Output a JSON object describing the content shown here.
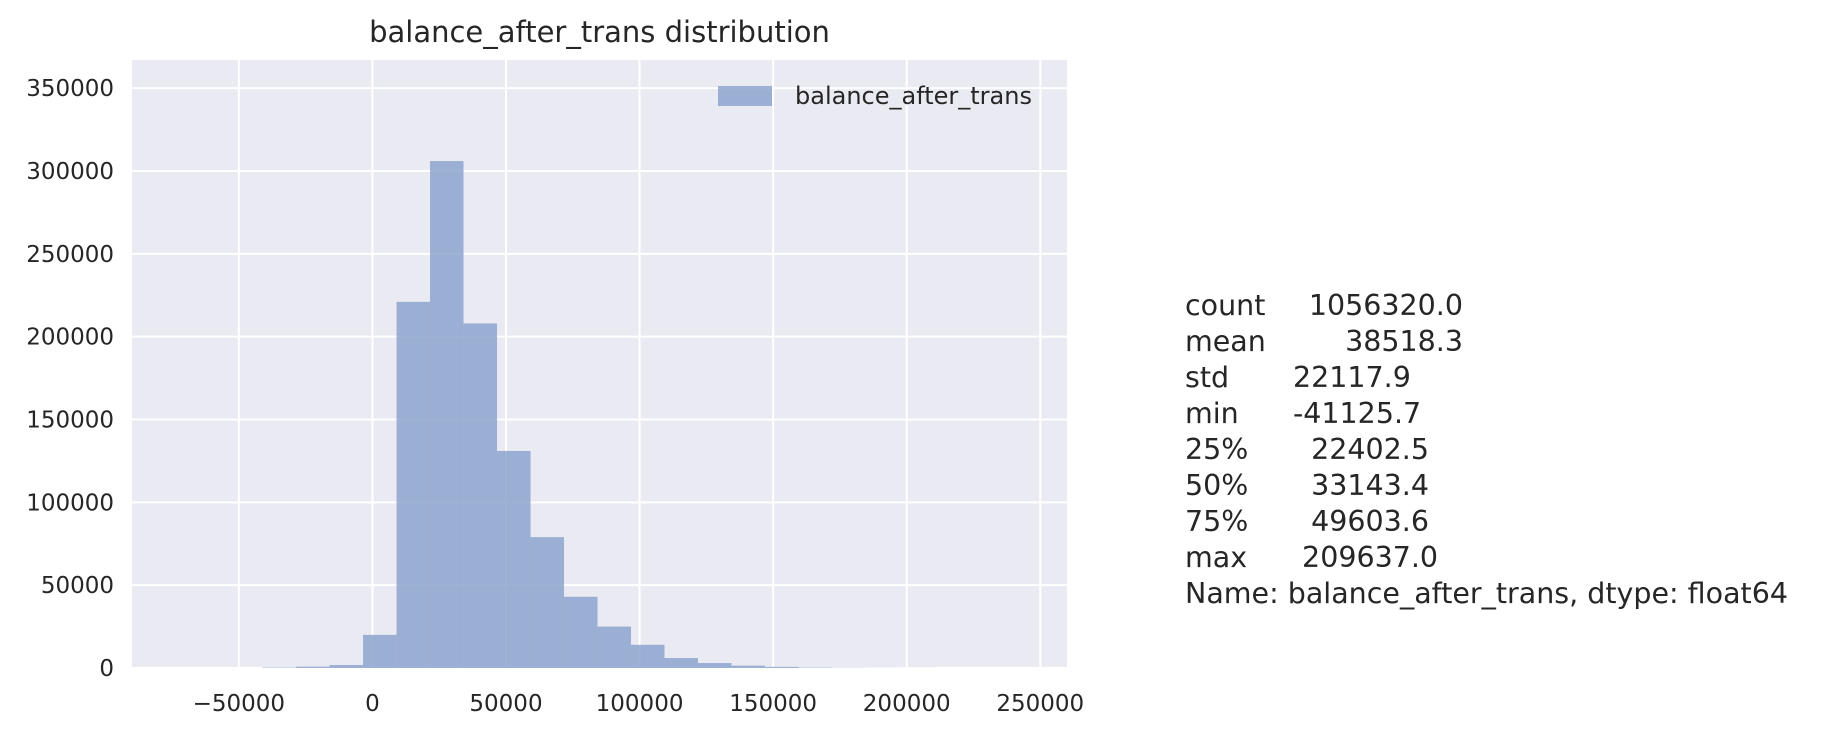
{
  "chart_data": {
    "type": "bar",
    "title": "balance_after_trans distribution",
    "xlabel": "",
    "ylabel": "",
    "xlim": [
      -90000,
      260000
    ],
    "ylim": [
      0,
      367000
    ],
    "xticks": [
      -50000,
      0,
      50000,
      100000,
      150000,
      200000,
      250000
    ],
    "xtick_labels": [
      "−50000",
      "0",
      "50000",
      "100000",
      "150000",
      "200000",
      "250000"
    ],
    "yticks": [
      0,
      50000,
      100000,
      150000,
      200000,
      250000,
      300000,
      350000
    ],
    "ytick_labels": [
      "0",
      "50000",
      "100000",
      "150000",
      "200000",
      "250000",
      "300000",
      "350000"
    ],
    "grid": true,
    "legend_position": "top-right",
    "bar_color": "#8da4cf",
    "background": "#eaeaf2",
    "series": [
      {
        "name": "balance_after_trans",
        "bin_edges": [
          -41125.7,
          -28587.5,
          -16049.4,
          -3511.2,
          9027.0,
          21565.2,
          34103.4,
          46641.5,
          59179.7,
          71717.9,
          84256.1,
          96794.2,
          109332.4,
          121870.6,
          134408.8,
          146946.9,
          159485.1,
          172023.3,
          184561.5,
          197099.6,
          209637.0
        ],
        "counts": [
          300,
          800,
          1800,
          20000,
          221000,
          306000,
          208000,
          131000,
          79000,
          43000,
          25000,
          14000,
          6000,
          3000,
          1400,
          700,
          300,
          150,
          80,
          40
        ]
      }
    ]
  },
  "stats": {
    "rows": [
      {
        "key": "count",
        "value": "1056320.0"
      },
      {
        "key": "mean",
        "value": "  38518.3"
      },
      {
        "key": "std",
        "value": "22117.9"
      },
      {
        "key": "min",
        "value": "-41125.7"
      },
      {
        "key": "25%",
        "value": "  22402.5"
      },
      {
        "key": "50%",
        "value": "  33143.4"
      },
      {
        "key": "75%",
        "value": "  49603.6"
      },
      {
        "key": "max",
        "value": " 209637.0"
      }
    ],
    "footer": "Name: balance_after_trans, dtype: float64"
  }
}
